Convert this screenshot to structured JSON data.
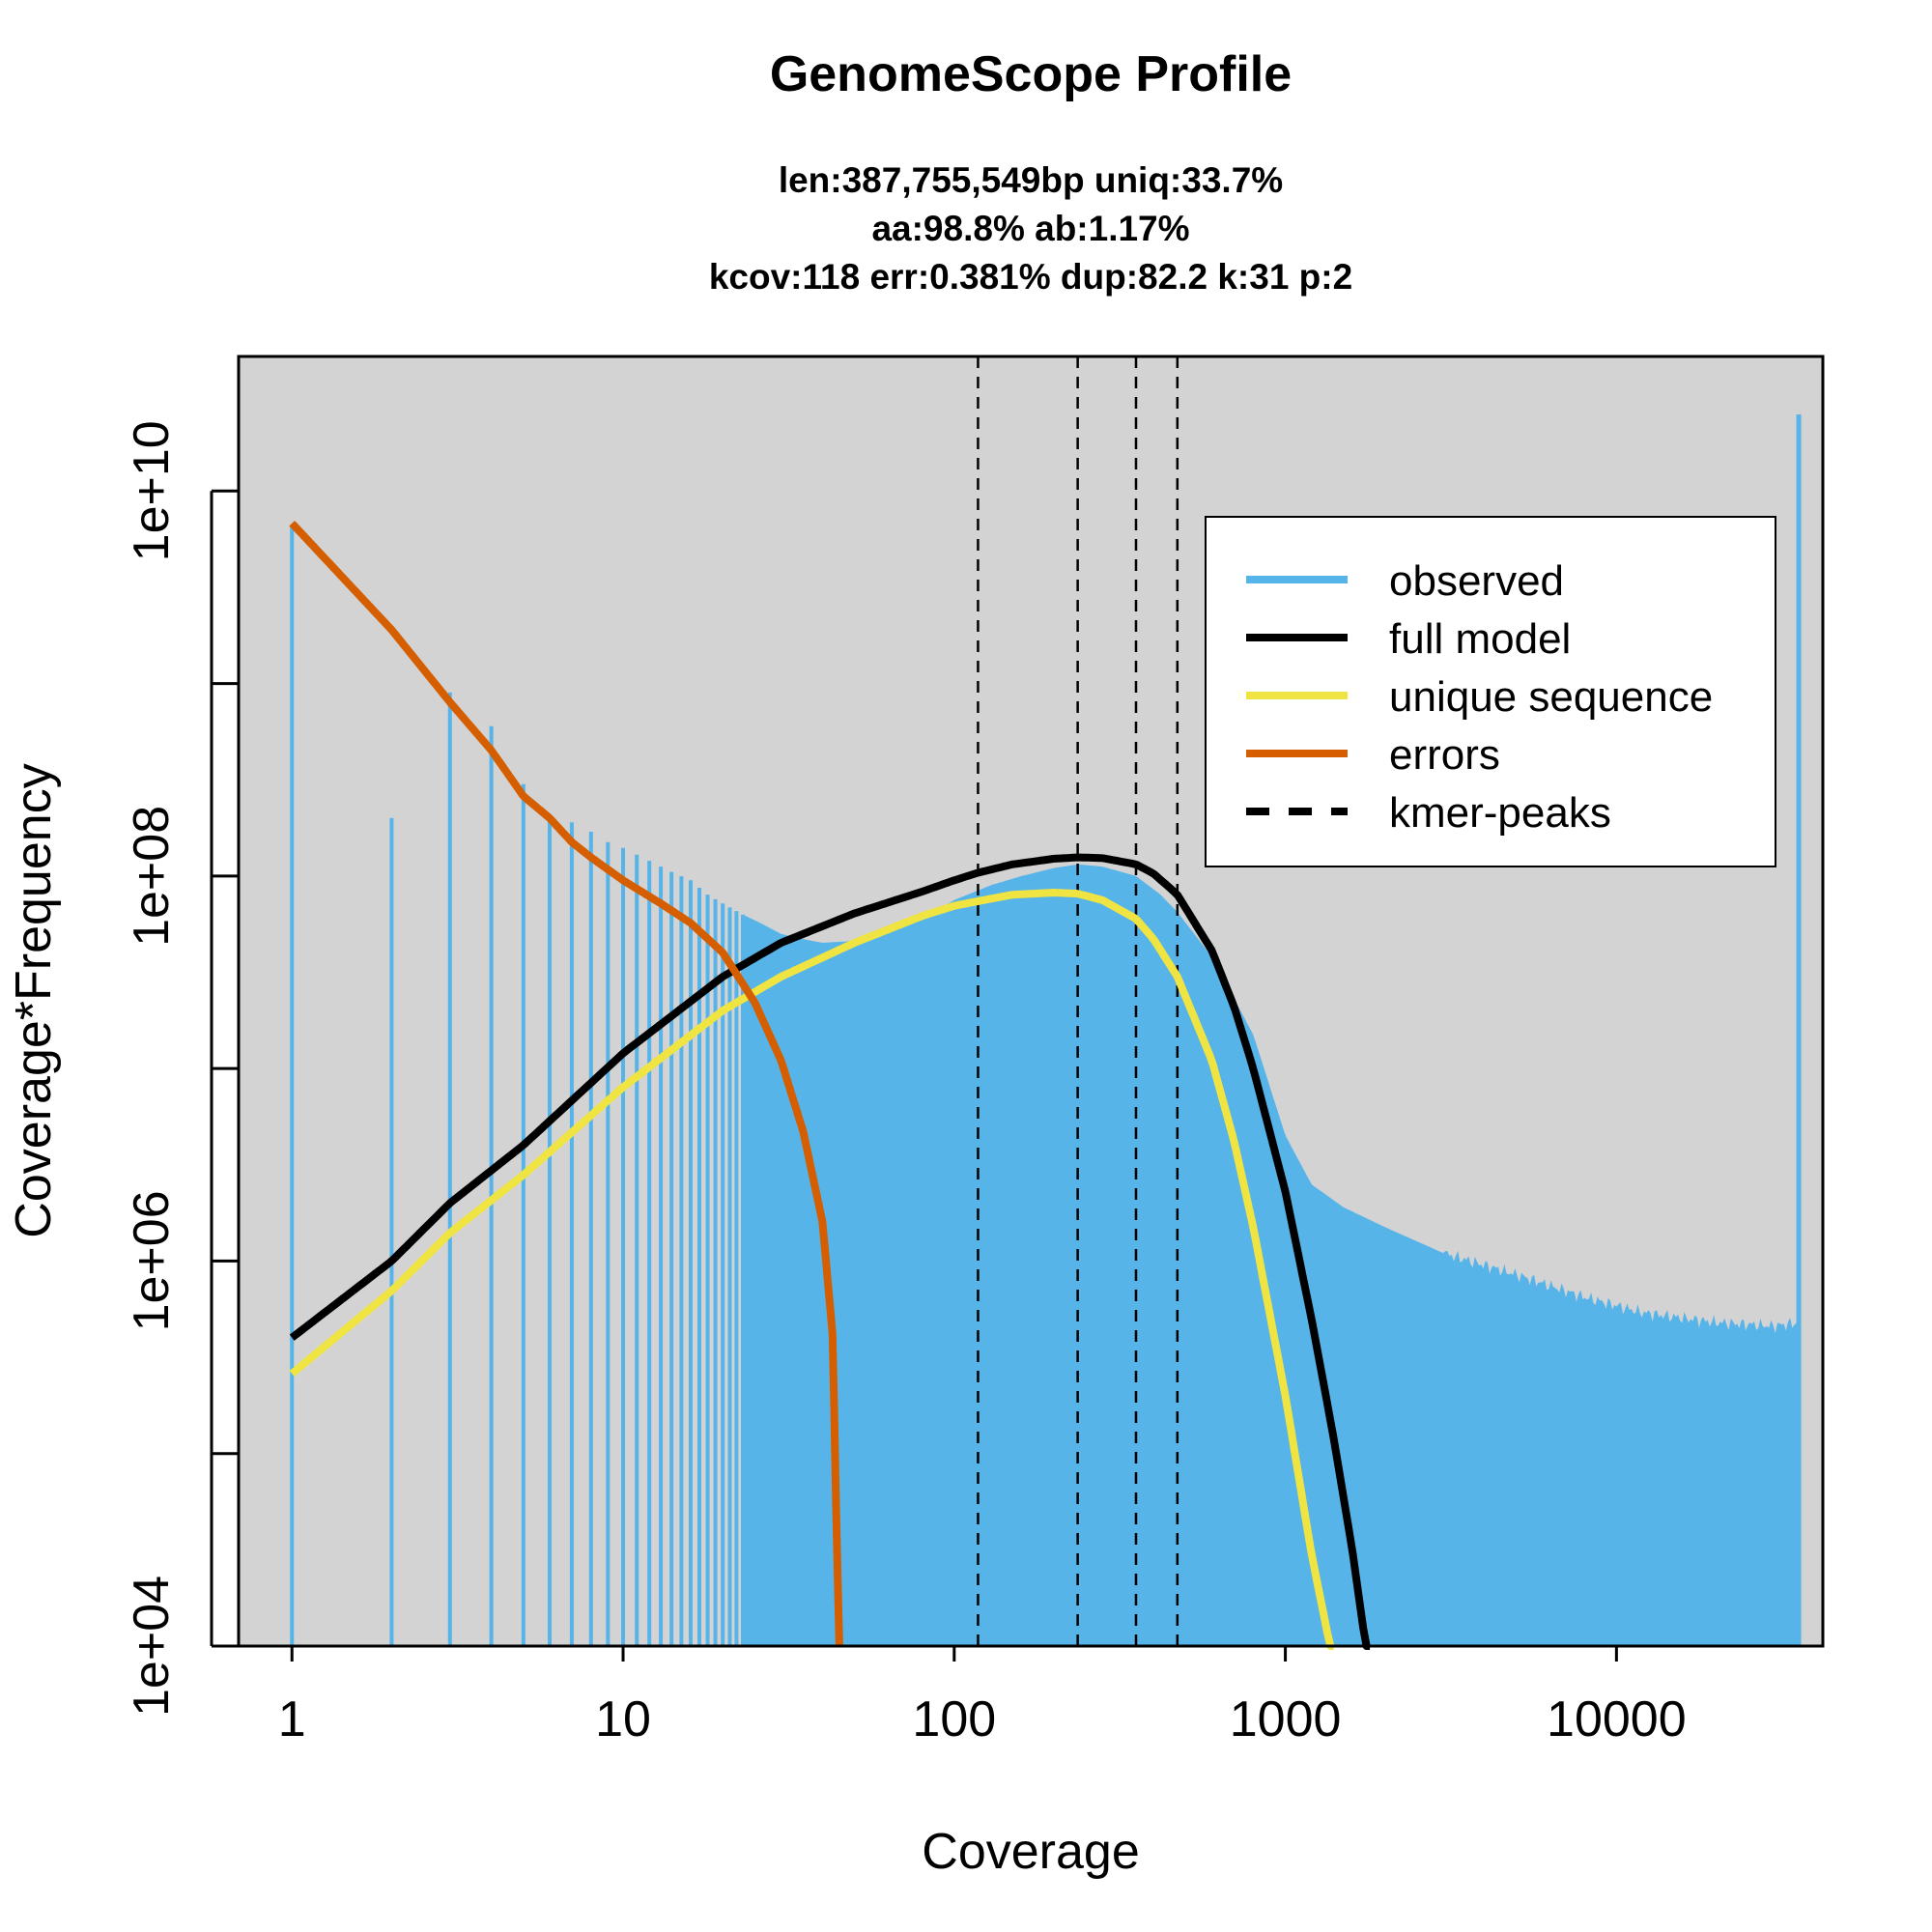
{
  "chart_data": {
    "type": "line",
    "title": "GenomeScope Profile",
    "subtitle_lines": [
      "len:387,755,549bp uniq:33.7%",
      "aa:98.8% ab:1.17%",
      "kcov:118 err:0.381%  dup:82.2  k:31 p:2"
    ],
    "xlabel": "Coverage",
    "ylabel": "Coverage*Frequency",
    "x_scale": "log",
    "y_scale": "log",
    "xlim": [
      0.69,
      42000
    ],
    "ylim": [
      10000,
      50000000000
    ],
    "x_ticks": [
      1,
      10,
      100,
      1000,
      10000
    ],
    "x_tick_labels": [
      "1",
      "10",
      "100",
      "1000",
      "10000"
    ],
    "y_ticks": [
      10000,
      100000,
      1000000,
      10000000,
      100000000,
      1000000000,
      10000000000
    ],
    "y_tick_labels": [
      "1e+04",
      "",
      "1e+06",
      "",
      "1e+08",
      "",
      "1e+10"
    ],
    "grid": false,
    "background": "#d3d3d3",
    "legend_position": "top-right",
    "legend": [
      {
        "label": "observed",
        "color": "#56b4e9",
        "style": "solid"
      },
      {
        "label": "full model",
        "color": "#000000",
        "style": "solid"
      },
      {
        "label": "unique sequence",
        "color": "#f0e442",
        "style": "solid"
      },
      {
        "label": "errors",
        "color": "#d55e00",
        "style": "solid"
      },
      {
        "label": "kmer-peaks",
        "color": "#000000",
        "style": "dashed"
      }
    ],
    "kmer_peaks": [
      118,
      236,
      354,
      472
    ],
    "series": [
      {
        "name": "observed",
        "kind": "histogram",
        "color": "#56b4e9",
        "x": [
          1,
          2,
          3,
          4,
          5,
          6,
          7,
          8,
          9,
          10,
          12,
          14,
          16,
          18,
          20,
          23,
          26,
          30,
          35,
          40,
          50,
          60,
          80,
          100,
          130,
          160,
          200,
          236,
          280,
          354,
          420,
          472,
          600,
          800,
          1000,
          1200,
          1500,
          2000,
          3000,
          5000,
          8000,
          12000,
          20000,
          30000,
          36000
        ],
        "y": [
          6500000000,
          200000000,
          900000000,
          600000000,
          300000000,
          200000000,
          190000000,
          170000000,
          150000000,
          140000000,
          120000000,
          105000000,
          95000000,
          80000000,
          72000000,
          63000000,
          57000000,
          50000000,
          47000000,
          45000000,
          46000000,
          50000000,
          60000000,
          75000000,
          90000000,
          100000000,
          110000000,
          115000000,
          112000000,
          100000000,
          80000000,
          65000000,
          38000000,
          15000000,
          4500000,
          2500000,
          1900000,
          1500000,
          1100000,
          850000,
          650000,
          540000,
          480000,
          460000,
          480000
        ],
        "spike": {
          "x": 36000,
          "y": 25000000000
        }
      },
      {
        "name": "full model",
        "kind": "line",
        "color": "#000000",
        "x": [
          1,
          2,
          3,
          5,
          10,
          20,
          30,
          50,
          80,
          100,
          118,
          150,
          200,
          236,
          280,
          354,
          400,
          472,
          600,
          700,
          800,
          1000,
          1200,
          1400,
          1600,
          1800
        ],
        "y": [
          400000,
          1000000,
          2000000,
          4000000,
          12000000,
          30000000,
          45000000,
          64000000,
          83000000,
          95000000,
          104000000,
          115000000,
          123000000,
          125000000,
          124000000,
          115000000,
          103000000,
          80000000,
          41000000,
          21000000,
          10000000,
          2300000,
          500000,
          120000,
          30000,
          7000
        ]
      },
      {
        "name": "unique sequence",
        "kind": "line",
        "color": "#f0e442",
        "x": [
          1,
          2,
          3,
          5,
          10,
          20,
          30,
          50,
          80,
          100,
          118,
          150,
          200,
          236,
          280,
          354,
          400,
          472,
          600,
          700,
          800,
          1000,
          1200,
          1400
        ],
        "y": [
          260000,
          700000,
          1400000,
          2800000,
          8000000,
          20000000,
          30000000,
          45000000,
          62000000,
          70000000,
          74000000,
          80000000,
          82000000,
          81000000,
          75000000,
          60000000,
          47000000,
          30000000,
          11000000,
          4200000,
          1500000,
          200000,
          30000,
          8000
        ]
      },
      {
        "name": "errors",
        "kind": "line",
        "color": "#d55e00",
        "x": [
          1,
          2,
          3,
          4,
          5,
          6,
          7,
          8,
          10,
          13,
          16,
          20,
          25,
          30,
          35,
          40,
          43,
          44,
          45
        ],
        "y": [
          6800000000,
          1900000000,
          800000000,
          450000000,
          260000000,
          200000000,
          150000000,
          125000000,
          95000000,
          72000000,
          57000000,
          40000000,
          22000000,
          11000000,
          4700000,
          1600000,
          400000,
          50000,
          9000
        ]
      }
    ]
  }
}
